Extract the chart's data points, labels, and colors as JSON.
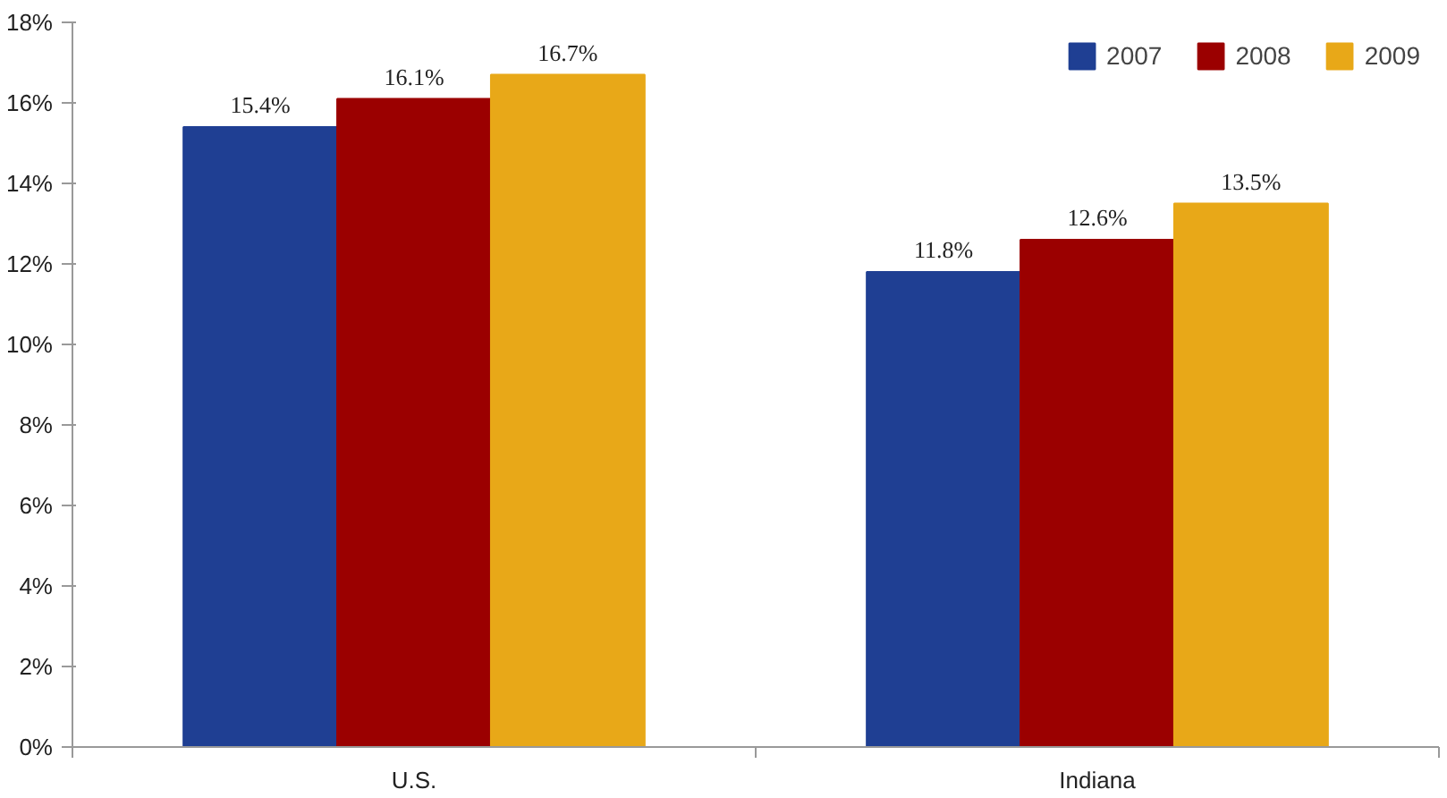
{
  "chart_data": {
    "type": "bar",
    "categories": [
      "U.S.",
      "Indiana"
    ],
    "series": [
      {
        "name": "2007",
        "color": "#1f3f93",
        "values": [
          15.4,
          11.8
        ],
        "value_labels": [
          "15.4%",
          "11.8%"
        ]
      },
      {
        "name": "2008",
        "color": "#9b0000",
        "values": [
          16.1,
          12.6
        ],
        "value_labels": [
          "16.1%",
          "12.6%"
        ]
      },
      {
        "name": "2009",
        "color": "#e8a818",
        "values": [
          16.7,
          13.5
        ],
        "value_labels": [
          "16.7%",
          "13.5%"
        ]
      }
    ],
    "ylim": [
      0,
      18
    ],
    "yticks": [
      {
        "value": 0,
        "label": "0%"
      },
      {
        "value": 2,
        "label": "2%"
      },
      {
        "value": 4,
        "label": "4%"
      },
      {
        "value": 6,
        "label": "6%"
      },
      {
        "value": 8,
        "label": "8%"
      },
      {
        "value": 10,
        "label": "10%"
      },
      {
        "value": 12,
        "label": "12%"
      },
      {
        "value": 14,
        "label": "14%"
      },
      {
        "value": 16,
        "label": "16%"
      },
      {
        "value": 18,
        "label": "18%"
      }
    ],
    "grid": false,
    "legend": "top right"
  }
}
